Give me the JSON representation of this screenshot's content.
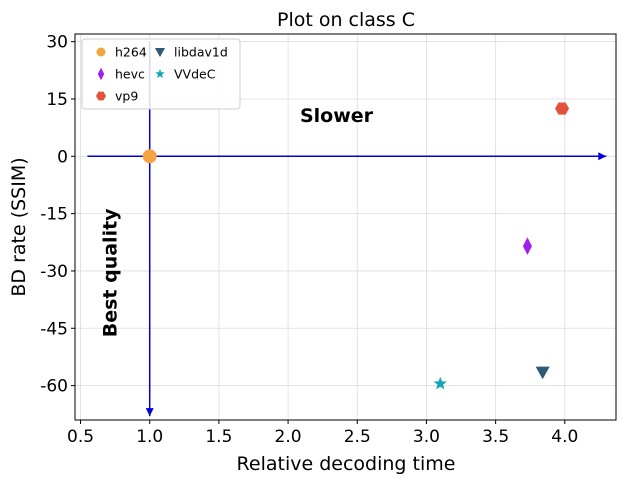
{
  "chart_data": {
    "type": "scatter",
    "title": "Plot on class C",
    "xlabel": "Relative decoding time",
    "ylabel": "BD rate (SSIM)",
    "xlim": [
      0.46,
      4.37
    ],
    "ylim": [
      -69,
      32
    ],
    "xticks": [
      0.5,
      1.0,
      1.5,
      2.0,
      2.5,
      3.0,
      3.5,
      4.0
    ],
    "xtick_labels": [
      "0.5",
      "1.0",
      "1.5",
      "2.0",
      "2.5",
      "3.0",
      "3.5",
      "4.0"
    ],
    "yticks": [
      30,
      15,
      0,
      -15,
      -30,
      -45,
      -60
    ],
    "ytick_labels": [
      "30",
      "15",
      "0",
      "-15",
      "-30",
      "-45",
      "-60"
    ],
    "grid": true,
    "legend_position": "top-left",
    "series": [
      {
        "name": "h264",
        "marker": "circle",
        "color": "#f5a442",
        "x": [
          1.0
        ],
        "y": [
          0
        ]
      },
      {
        "name": "hevc",
        "marker": "thin-diamond",
        "color": "#a020f0",
        "x": [
          3.73
        ],
        "y": [
          -23.5
        ]
      },
      {
        "name": "vp9",
        "marker": "hexagon",
        "color": "#e0523a",
        "x": [
          3.98
        ],
        "y": [
          12.5
        ]
      },
      {
        "name": "libdav1d",
        "marker": "triangle-down",
        "color": "#2e5a7a",
        "x": [
          3.84
        ],
        "y": [
          -56.5
        ]
      },
      {
        "name": "VVdeC",
        "marker": "star",
        "color": "#17a2b8",
        "x": [
          3.1
        ],
        "y": [
          -59.5
        ]
      }
    ],
    "annotations": {
      "slower": {
        "text": "Slower",
        "x": 2.35,
        "y": 9
      },
      "best_quality": {
        "text": "Best quality",
        "x": 0.76,
        "y": -30.5
      }
    },
    "arrow_color": "#0000dd",
    "arrows": [
      {
        "from": [
          0.55,
          0
        ],
        "to": [
          4.3,
          0
        ]
      },
      {
        "from": [
          1.0,
          30
        ],
        "to": [
          1.0,
          -68
        ]
      }
    ]
  }
}
